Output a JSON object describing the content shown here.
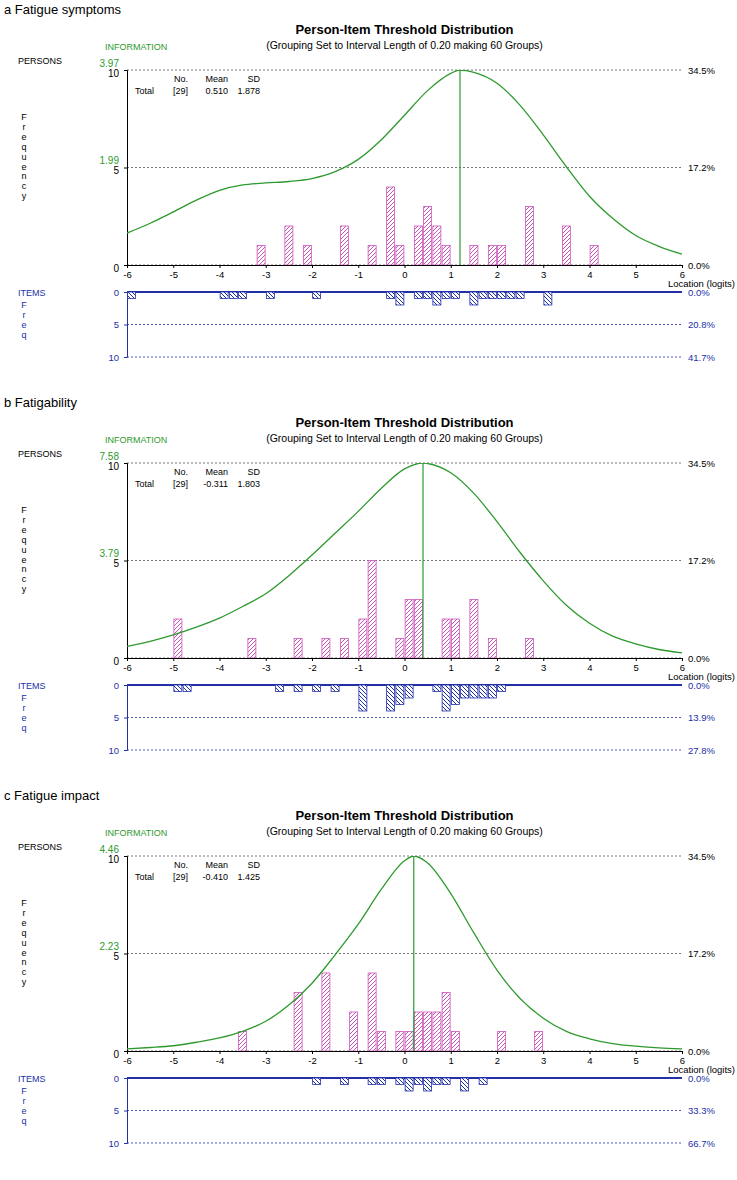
{
  "chart_data": [
    {
      "type": "histogram",
      "panel_label": "a Fatigue symptoms",
      "title": "Person-Item Threshold Distribution",
      "subtitle": "(Grouping Set to Interval Length of 0.20 making 60 Groups)",
      "x_label": "Location (logits)",
      "xlim": [
        -6,
        6
      ],
      "xticks": [
        -6,
        -5,
        -4,
        -3,
        -2,
        -1,
        0,
        1,
        2,
        3,
        4,
        5,
        6
      ],
      "grid": true,
      "stats": {
        "columns": [
          "No.",
          "Mean",
          "SD"
        ],
        "row_label": "Total",
        "cells": [
          "[29]",
          "0.510",
          "1.878"
        ]
      },
      "persons": {
        "label": "PERSONS",
        "y_label": "Frequency",
        "color": "#cc55bb",
        "ylim": [
          0,
          10
        ],
        "yticks": [
          0,
          5,
          10
        ],
        "y3lim": [
          0,
          34.5
        ],
        "y3ticks": [
          {
            "value": 0,
            "label": "0.0%"
          },
          {
            "value": 17.2,
            "label": "17.2%"
          },
          {
            "value": 34.5,
            "label": "34.5%"
          }
        ],
        "x": [
          -3.1,
          -2.5,
          -2.1,
          -1.3,
          -0.7,
          -0.3,
          -0.1,
          0.3,
          0.5,
          0.7,
          0.9,
          1.5,
          1.9,
          2.1,
          2.7,
          3.5,
          4.1
        ],
        "values": [
          1,
          2,
          1,
          2,
          1,
          4,
          1,
          2,
          3,
          2,
          1,
          1,
          1,
          1,
          3,
          2,
          1
        ]
      },
      "information": {
        "label": "INFORMATION",
        "type": "line",
        "color": "#2e9a2e",
        "y2lim": [
          0,
          3.97
        ],
        "y2ticks": [
          1.99,
          3.97
        ],
        "peak_x": 1.2,
        "x": [
          -6,
          -5.5,
          -5,
          -4.5,
          -4,
          -3.5,
          -3,
          -2.5,
          -2,
          -1.5,
          -1,
          -0.5,
          0,
          0.5,
          1,
          1.2,
          1.5,
          2,
          2.5,
          3,
          3.5,
          4,
          4.5,
          5,
          5.5,
          6
        ],
        "values": [
          0.65,
          0.85,
          1.08,
          1.32,
          1.52,
          1.63,
          1.67,
          1.7,
          1.76,
          1.9,
          2.15,
          2.55,
          3.05,
          3.55,
          3.9,
          3.97,
          3.92,
          3.7,
          3.25,
          2.65,
          2.0,
          1.4,
          0.95,
          0.6,
          0.38,
          0.22
        ]
      },
      "items": {
        "label": "ITEMS",
        "y_label": "Freq",
        "color": "#2230a8",
        "ylim": [
          0,
          10
        ],
        "yticks": [
          0,
          5,
          10
        ],
        "y3lim": [
          0,
          41.7
        ],
        "y3ticks": [
          {
            "value": 0,
            "label": "0.0%"
          },
          {
            "value": 20.8,
            "label": "20.8%"
          },
          {
            "value": 41.7,
            "label": "41.7%"
          }
        ],
        "x": [
          -5.9,
          -3.9,
          -3.7,
          -3.5,
          -2.9,
          -1.9,
          -0.3,
          -0.1,
          0.3,
          0.5,
          0.7,
          0.9,
          1.1,
          1.5,
          1.7,
          1.9,
          2.1,
          2.3,
          2.5,
          3.1
        ],
        "values": [
          1,
          1,
          1,
          1,
          1,
          1,
          1,
          2,
          1,
          1,
          2,
          1,
          1,
          2,
          1,
          1,
          1,
          1,
          1,
          2
        ]
      }
    },
    {
      "type": "histogram",
      "panel_label": "b Fatigability",
      "title": "Person-Item Threshold Distribution",
      "subtitle": "(Grouping Set to Interval Length of 0.20 making 60 Groups)",
      "x_label": "Location (logits)",
      "xlim": [
        -6,
        6
      ],
      "xticks": [
        -6,
        -5,
        -4,
        -3,
        -2,
        -1,
        0,
        1,
        2,
        3,
        4,
        5,
        6
      ],
      "grid": true,
      "stats": {
        "columns": [
          "No.",
          "Mean",
          "SD"
        ],
        "row_label": "Total",
        "cells": [
          "[29]",
          "-0.311",
          "1.803"
        ]
      },
      "persons": {
        "label": "PERSONS",
        "y_label": "Frequency",
        "color": "#cc55bb",
        "ylim": [
          0,
          10
        ],
        "yticks": [
          0,
          5,
          10
        ],
        "y3lim": [
          0,
          34.5
        ],
        "y3ticks": [
          {
            "value": 0,
            "label": "0.0%"
          },
          {
            "value": 17.2,
            "label": "17.2%"
          },
          {
            "value": 34.5,
            "label": "34.5%"
          }
        ],
        "x": [
          -4.9,
          -3.3,
          -2.3,
          -1.7,
          -1.3,
          -0.9,
          -0.7,
          -0.1,
          0.1,
          0.3,
          0.9,
          1.1,
          1.5,
          1.9,
          2.7
        ],
        "values": [
          2,
          1,
          1,
          1,
          1,
          2,
          5,
          1,
          3,
          3,
          2,
          2,
          3,
          1,
          1
        ]
      },
      "information": {
        "label": "INFORMATION",
        "type": "line",
        "color": "#2e9a2e",
        "y2lim": [
          0,
          7.58
        ],
        "y2ticks": [
          3.79,
          7.58
        ],
        "peak_x": 0.4,
        "x": [
          -6,
          -5.5,
          -5,
          -4.5,
          -4,
          -3.5,
          -3,
          -2.5,
          -2,
          -1.5,
          -1,
          -0.5,
          0,
          0.4,
          0.5,
          1,
          1.5,
          2,
          2.5,
          3,
          3.5,
          4,
          4.5,
          5,
          5.5,
          6
        ],
        "values": [
          0.45,
          0.65,
          0.9,
          1.2,
          1.55,
          2.0,
          2.5,
          3.2,
          4.0,
          4.85,
          5.7,
          6.6,
          7.35,
          7.58,
          7.56,
          7.2,
          6.4,
          5.3,
          4.1,
          3.0,
          2.05,
          1.35,
          0.85,
          0.55,
          0.33,
          0.2
        ]
      },
      "items": {
        "label": "ITEMS",
        "y_label": "Freq",
        "color": "#2230a8",
        "ylim": [
          0,
          10
        ],
        "yticks": [
          0,
          5,
          10
        ],
        "y3lim": [
          0,
          27.8
        ],
        "y3ticks": [
          {
            "value": 0,
            "label": "0.0%"
          },
          {
            "value": 13.9,
            "label": "13.9%"
          },
          {
            "value": 27.8,
            "label": "27.8%"
          }
        ],
        "x": [
          -4.9,
          -4.7,
          -2.7,
          -2.3,
          -1.9,
          -1.5,
          -0.9,
          -0.3,
          -0.1,
          0.1,
          0.7,
          0.9,
          1.1,
          1.3,
          1.5,
          1.7,
          1.9,
          2.1
        ],
        "values": [
          1,
          1,
          1,
          1,
          1,
          1,
          4,
          4,
          3,
          2,
          1,
          4,
          3,
          2,
          2,
          2,
          2,
          1
        ]
      }
    },
    {
      "type": "histogram",
      "panel_label": "c Fatigue impact",
      "title": "Person-Item Threshold Distribution",
      "subtitle": "(Grouping Set to Interval Length of 0.20 making 60 Groups)",
      "x_label": "Location (logits)",
      "xlim": [
        -6,
        6
      ],
      "xticks": [
        -6,
        -5,
        -4,
        -3,
        -2,
        -1,
        0,
        1,
        2,
        3,
        4,
        5,
        6
      ],
      "grid": true,
      "stats": {
        "columns": [
          "No.",
          "Mean",
          "SD"
        ],
        "row_label": "Total",
        "cells": [
          "[29]",
          "-0.410",
          "1.425"
        ]
      },
      "persons": {
        "label": "PERSONS",
        "y_label": "Frequency",
        "color": "#cc55bb",
        "ylim": [
          0,
          10
        ],
        "yticks": [
          0,
          5,
          10
        ],
        "y3lim": [
          0,
          34.5
        ],
        "y3ticks": [
          {
            "value": 0,
            "label": "0.0%"
          },
          {
            "value": 17.2,
            "label": "17.2%"
          },
          {
            "value": 34.5,
            "label": "34.5%"
          }
        ],
        "x": [
          -3.5,
          -2.3,
          -1.7,
          -1.1,
          -0.7,
          -0.5,
          -0.1,
          0.1,
          0.3,
          0.5,
          0.7,
          0.9,
          1.1,
          2.1,
          2.9
        ],
        "values": [
          1,
          3,
          4,
          2,
          4,
          1,
          1,
          1,
          2,
          2,
          2,
          3,
          1,
          1,
          1
        ]
      },
      "information": {
        "label": "INFORMATION",
        "type": "line",
        "color": "#2e9a2e",
        "y2lim": [
          0,
          4.46
        ],
        "y2ticks": [
          2.23,
          4.46
        ],
        "peak_x": 0.2,
        "x": [
          -6,
          -5.5,
          -5,
          -4.5,
          -4,
          -3.5,
          -3,
          -2.5,
          -2,
          -1.5,
          -1,
          -0.5,
          0,
          0.2,
          0.5,
          1,
          1.5,
          2,
          2.5,
          3,
          3.5,
          4,
          4.5,
          5,
          5.5,
          6
        ],
        "values": [
          0.05,
          0.08,
          0.12,
          0.2,
          0.3,
          0.45,
          0.68,
          1.05,
          1.55,
          2.2,
          2.9,
          3.7,
          4.35,
          4.46,
          4.3,
          3.6,
          2.7,
          1.85,
          1.2,
          0.75,
          0.45,
          0.28,
          0.17,
          0.11,
          0.07,
          0.05
        ]
      },
      "items": {
        "label": "ITEMS",
        "y_label": "Freq",
        "color": "#2230a8",
        "ylim": [
          0,
          10
        ],
        "yticks": [
          0,
          5,
          10
        ],
        "y3lim": [
          0,
          66.7
        ],
        "y3ticks": [
          {
            "value": 0,
            "label": "0.0%"
          },
          {
            "value": 33.3,
            "label": "33.3%"
          },
          {
            "value": 66.7,
            "label": "66.7%"
          }
        ],
        "x": [
          -1.9,
          -1.3,
          -0.7,
          -0.5,
          -0.1,
          0.1,
          0.3,
          0.5,
          0.7,
          0.9,
          1.3,
          1.7
        ],
        "values": [
          1,
          1,
          1,
          1,
          1,
          2,
          1,
          2,
          1,
          1,
          2,
          1
        ]
      }
    }
  ]
}
